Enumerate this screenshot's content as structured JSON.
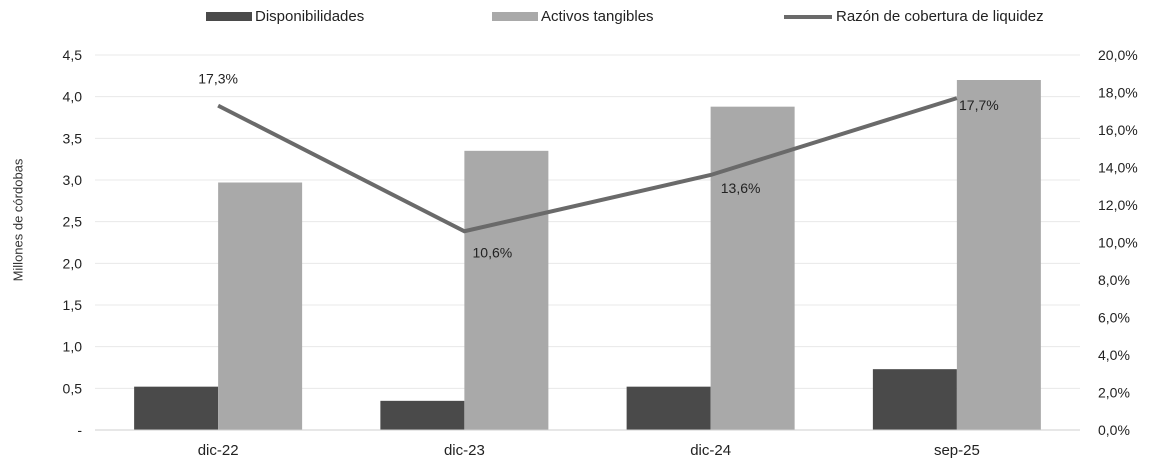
{
  "legend": {
    "disponibilidades": "Disponibilidades",
    "activos": "Activos tangibles",
    "razon": "Razón de cobertura de liquidez"
  },
  "colors": {
    "disponibilidades": "#4a4a4a",
    "activos": "#a9a9a9",
    "line": "#6a6a6a"
  },
  "chart_data": {
    "type": "bar",
    "categories": [
      "dic-22",
      "dic-23",
      "dic-24",
      "sep-25"
    ],
    "series": [
      {
        "name": "Disponibilidades",
        "axis": "left",
        "values": [
          0.52,
          0.35,
          0.52,
          0.73
        ]
      },
      {
        "name": "Activos tangibles",
        "axis": "left",
        "values": [
          2.97,
          3.35,
          3.88,
          4.2
        ]
      },
      {
        "name": "Razón de cobertura de liquidez",
        "type": "line",
        "axis": "right",
        "values": [
          17.3,
          10.6,
          13.6,
          17.7
        ],
        "labels": [
          "17,3%",
          "10,6%",
          "13,6%",
          "17,7%"
        ]
      }
    ],
    "ylabel": "Millones de córdobas",
    "ylim": [
      0,
      4.5
    ],
    "yticks": [
      "-",
      "0,5",
      "1,0",
      "1,5",
      "2,0",
      "2,5",
      "3,0",
      "3,5",
      "4,0",
      "4,5"
    ],
    "y2lim": [
      0,
      20
    ],
    "y2ticks": [
      "0,0%",
      "2,0%",
      "4,0%",
      "6,0%",
      "8,0%",
      "10,0%",
      "12,0%",
      "14,0%",
      "16,0%",
      "18,0%",
      "20,0%"
    ],
    "grid": true,
    "legend_position": "top"
  }
}
